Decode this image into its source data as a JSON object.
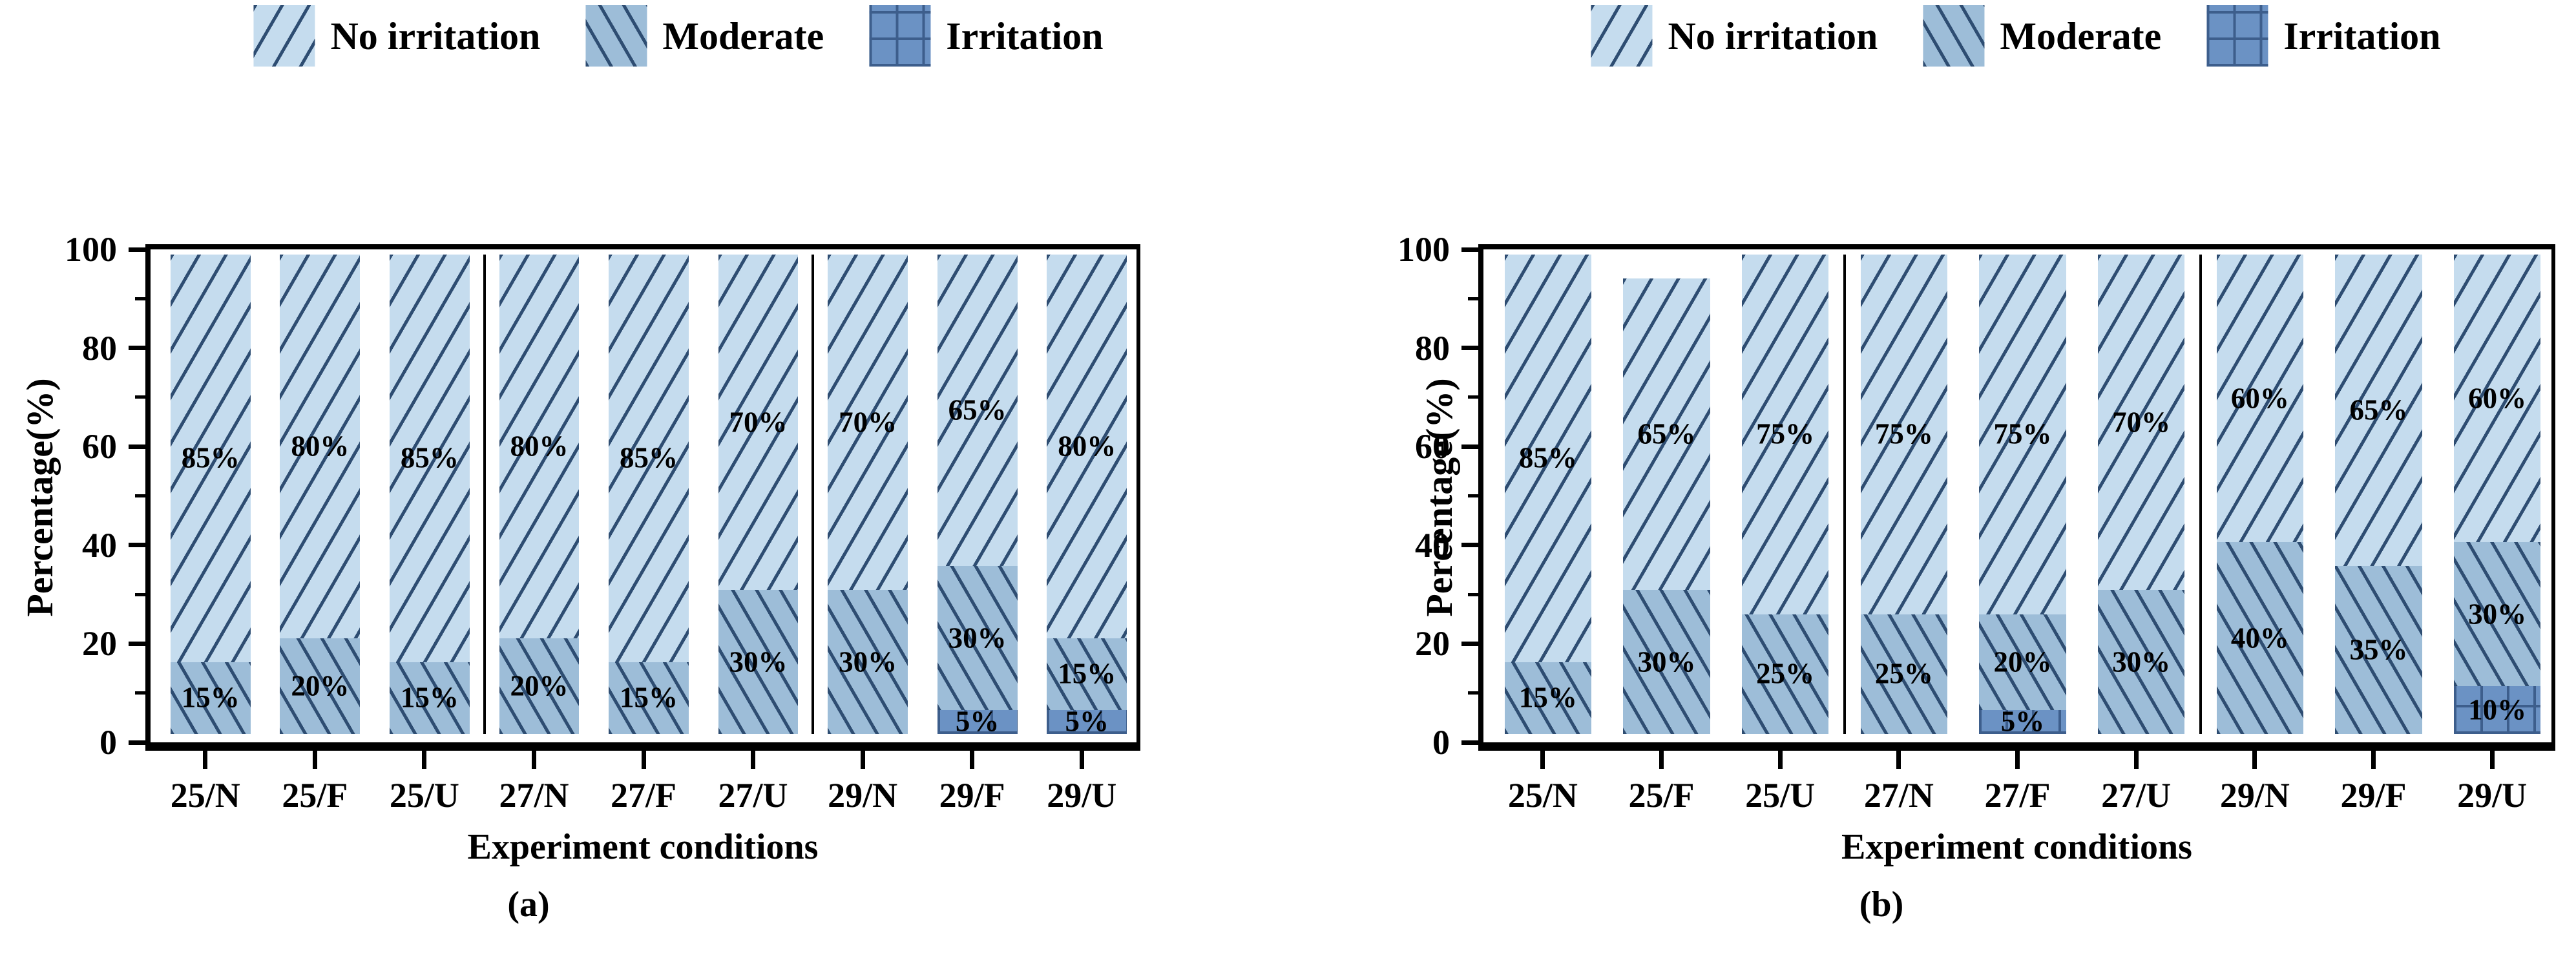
{
  "figure": {
    "captions": {
      "a": "(a)",
      "b": "(b)"
    }
  },
  "legend": {
    "items": [
      {
        "label": "No irritation",
        "swatch": "diagonal-forward-hatch"
      },
      {
        "label": "Moderate",
        "swatch": "diagonal-backward-hatch"
      },
      {
        "label": "Irritation",
        "swatch": "grid-hatch"
      }
    ]
  },
  "axes": {
    "ylabel": "Percentage(%)",
    "xlabel": "Experiment conditions",
    "ylim": [
      0,
      100
    ],
    "yticks": [
      0,
      20,
      40,
      60,
      80,
      100
    ],
    "yticks_minor": [
      10,
      30,
      50,
      70,
      90
    ],
    "grid": false,
    "legend_position": "top-center"
  },
  "colors": {
    "no_irritation_fill": "#c5dcee",
    "moderate_fill": "#9dbdd8",
    "irritation_fill": "#6b92c4",
    "hatch_line": "#2e4d72",
    "grid_hatch_line": "#3d5e8c",
    "axis": "#000000",
    "text": "#000000",
    "background": "#ffffff"
  },
  "chart_data": [
    {
      "type": "bar",
      "stacked": true,
      "panel": "a",
      "caption": "(a)",
      "xlabel": "Experiment conditions",
      "ylabel": "Percentage(%)",
      "ylim": [
        0,
        100
      ],
      "categories": [
        "25/N",
        "25/F",
        "25/U",
        "27/N",
        "27/F",
        "27/U",
        "29/N",
        "29/F",
        "29/U"
      ],
      "series": [
        {
          "name": "No irritation",
          "values": [
            85,
            80,
            85,
            80,
            85,
            70,
            70,
            65,
            80
          ]
        },
        {
          "name": "Moderate",
          "values": [
            15,
            20,
            15,
            20,
            15,
            30,
            30,
            30,
            15
          ]
        },
        {
          "name": "Irritation",
          "values": [
            0,
            0,
            0,
            0,
            0,
            0,
            0,
            5,
            5
          ]
        }
      ],
      "value_label_suffix": "%",
      "group_dividers_after": [
        2,
        5
      ]
    },
    {
      "type": "bar",
      "stacked": true,
      "panel": "b",
      "caption": "(b)",
      "xlabel": "Experiment conditions",
      "ylabel": "Percentage(%)",
      "ylim": [
        0,
        100
      ],
      "categories": [
        "25/N",
        "25/F",
        "25/U",
        "27/N",
        "27/F",
        "27/U",
        "29/N",
        "29/F",
        "29/U"
      ],
      "series": [
        {
          "name": "No irritation",
          "values": [
            85,
            65,
            75,
            75,
            75,
            70,
            60,
            65,
            60
          ]
        },
        {
          "name": "Moderate",
          "values": [
            15,
            30,
            25,
            25,
            20,
            30,
            40,
            35,
            30
          ]
        },
        {
          "name": "Irritation",
          "values": [
            0,
            0,
            0,
            0,
            5,
            0,
            0,
            0,
            10
          ]
        }
      ],
      "value_label_suffix": "%",
      "group_dividers_after": [
        2,
        5
      ]
    }
  ]
}
